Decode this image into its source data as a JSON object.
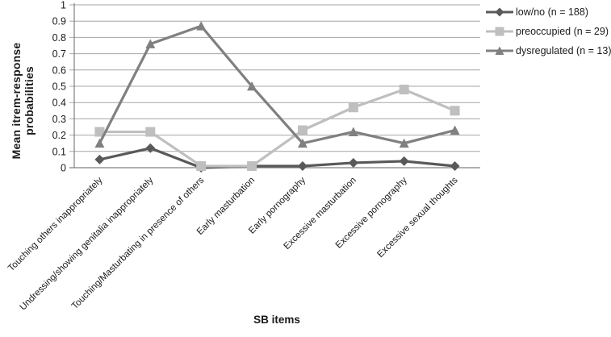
{
  "figure": {
    "background": "#ffffff",
    "text_color": "#1a1a1a"
  },
  "chart_data": {
    "type": "line",
    "title": "",
    "xlabel": "SB items",
    "ylabel": "Mean itrem-response probabilities",
    "ylim": [
      0,
      1
    ],
    "y_ticks": [
      "0",
      "0.1",
      "0.2",
      "0.3",
      "0.4",
      "0.5",
      "0.6",
      "0.7",
      "0.8",
      "0.9",
      "1"
    ],
    "grid": "horizontal",
    "gridline_color": "#a6a6a6",
    "axis_color": "#808080",
    "legend_position": "top-right",
    "categories": [
      "Touching others inappropriately",
      "Undressing/showing genitalia inappropriately",
      "Touching/Masturbating in presence of others",
      "Early masturbation",
      "Early pornography",
      "Excessive masturbation",
      "Excessive pornography",
      "Excessive sexual thoughts"
    ],
    "series": [
      {
        "name": "low/no (n = 188)",
        "marker": "diamond",
        "color": "#595959",
        "values": [
          0.05,
          0.12,
          0.0,
          0.01,
          0.01,
          0.03,
          0.04,
          0.01
        ]
      },
      {
        "name": "preoccupied  (n = 29)",
        "marker": "square",
        "color": "#bfbfbf",
        "values": [
          0.22,
          0.22,
          0.01,
          0.01,
          0.23,
          0.37,
          0.48,
          0.35
        ]
      },
      {
        "name": "dysregulated (n = 13)",
        "marker": "triangle",
        "color": "#808080",
        "values": [
          0.15,
          0.76,
          0.87,
          0.5,
          0.15,
          0.22,
          0.15,
          0.23
        ]
      }
    ]
  }
}
